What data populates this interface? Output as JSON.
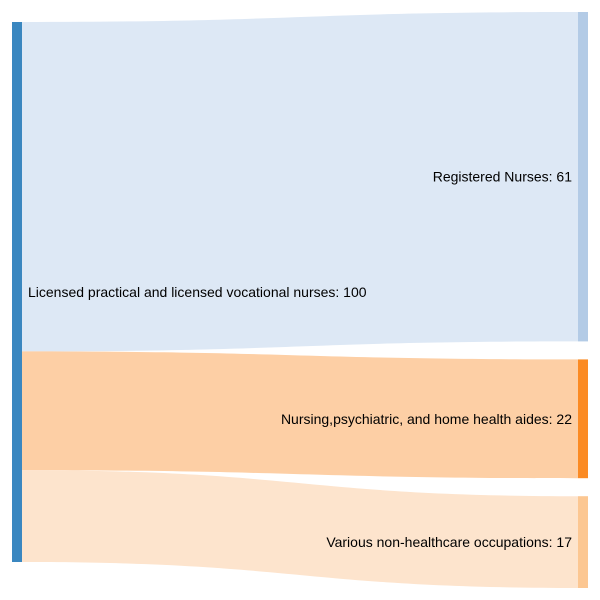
{
  "chart_data": {
    "type": "sankey",
    "source": {
      "label": "Licensed practical and licensed vocational nurses: 100",
      "value": 100,
      "color": "#3a87c0"
    },
    "targets": [
      {
        "label": "Registered Nurses: 61",
        "value": 61,
        "node_color": "#b3cbe6",
        "link_color": "#dde8f5"
      },
      {
        "label": "Nursing,psychiatric, and home health aides: 22",
        "value": 22,
        "node_color": "#fb8b24",
        "link_color": "#fdcfa5"
      },
      {
        "label": "Various non-healthcare occupations: 17",
        "value": 17,
        "node_color": "#fcc792",
        "link_color": "#fde4cd"
      }
    ]
  }
}
